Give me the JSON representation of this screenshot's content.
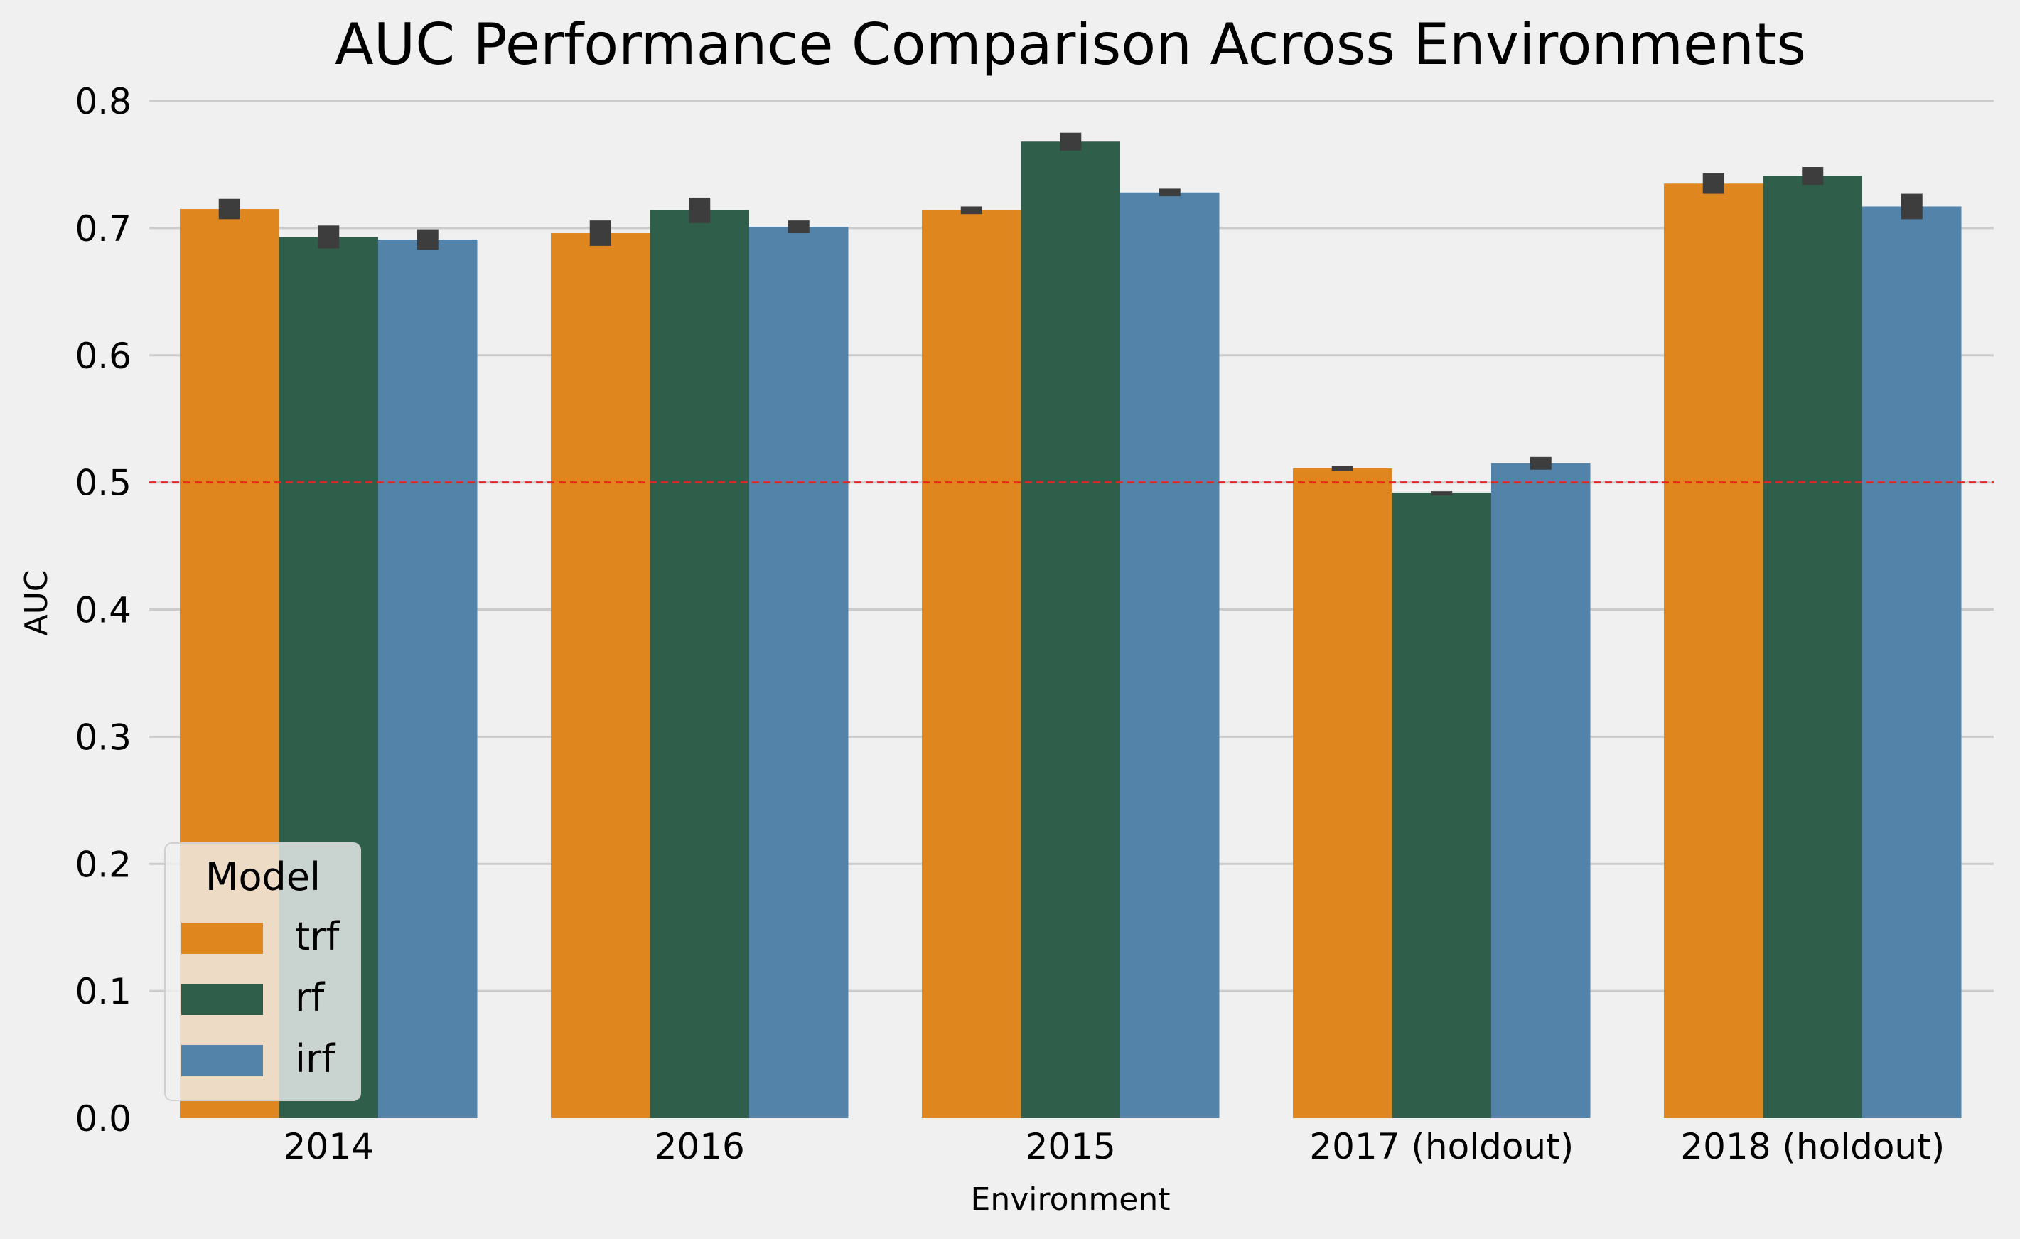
{
  "chart_data": {
    "type": "bar",
    "title": "AUC Performance Comparison Across Environments",
    "xlabel": "Environment",
    "ylabel": "AUC",
    "ylim": [
      0.0,
      0.8
    ],
    "yticks": [
      "0.0",
      "0.1",
      "0.2",
      "0.3",
      "0.4",
      "0.5",
      "0.6",
      "0.7",
      "0.8"
    ],
    "grid": true,
    "reference_line": {
      "y": 0.5,
      "color": "#e8261f",
      "style": "dashed"
    },
    "categories": [
      "2014",
      "2016",
      "2015",
      "2017 (holdout)",
      "2018 (holdout)"
    ],
    "series": [
      {
        "name": "trf",
        "color": "#e0861f",
        "values": [
          0.715,
          0.696,
          0.714,
          0.511,
          0.735
        ],
        "error": [
          0.008,
          0.01,
          0.003,
          0.002,
          0.008
        ]
      },
      {
        "name": "rf",
        "color": "#2f5f4a",
        "values": [
          0.693,
          0.714,
          0.768,
          0.492,
          0.741
        ],
        "error": [
          0.009,
          0.01,
          0.007,
          0.001,
          0.007
        ]
      },
      {
        "name": "irf",
        "color": "#5383a8",
        "values": [
          0.691,
          0.701,
          0.728,
          0.515,
          0.717
        ],
        "error": [
          0.008,
          0.005,
          0.003,
          0.005,
          0.01
        ]
      }
    ],
    "legend": {
      "title": "Model",
      "position": "lower-left"
    }
  }
}
